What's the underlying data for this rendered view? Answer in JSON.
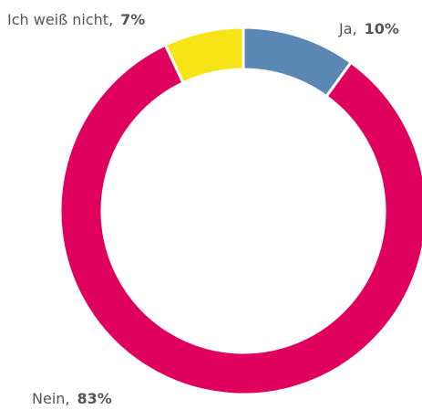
{
  "chart_data": {
    "type": "pie",
    "donut": true,
    "categories": [
      "Ja,",
      "Nein,",
      "Ich weiß nicht,"
    ],
    "values": [
      10,
      83,
      7
    ],
    "value_labels": [
      "10%",
      "83%",
      "7%"
    ],
    "colors": [
      "#5b87b5",
      "#e0005e",
      "#f7e416"
    ]
  }
}
